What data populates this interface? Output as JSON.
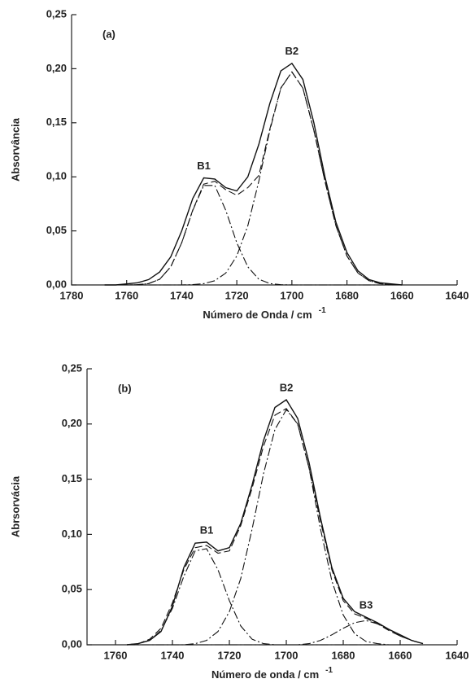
{
  "chart_data": [
    {
      "type": "line",
      "label": "(a)",
      "xlabel": "Número de Onda / cm",
      "xlabel_sup": "-1",
      "ylabel": "Absorvância",
      "xlim": [
        1780,
        1640
      ],
      "xticks": [
        1780,
        1760,
        1740,
        1720,
        1700,
        1680,
        1660,
        1640
      ],
      "ylim": [
        0,
        0.25
      ],
      "yticks": [
        {
          "value": 0,
          "label": "0,00"
        },
        {
          "value": 0.05,
          "label": "0,05"
        },
        {
          "value": 0.1,
          "label": "0,10"
        },
        {
          "value": 0.15,
          "label": "0,15"
        },
        {
          "value": 0.2,
          "label": "0,20"
        },
        {
          "value": 0.25,
          "label": "0,25"
        }
      ],
      "x": [
        1768,
        1764,
        1760,
        1756,
        1752,
        1748,
        1744,
        1740,
        1736,
        1732,
        1728,
        1724,
        1720,
        1716,
        1712,
        1708,
        1704,
        1700,
        1696,
        1692,
        1688,
        1684,
        1680,
        1676,
        1672,
        1668,
        1664,
        1660
      ],
      "series": [
        {
          "color": "#111",
          "style": "solid",
          "values": [
            0,
            0,
            0.001,
            0.002,
            0.005,
            0.012,
            0.026,
            0.05,
            0.08,
            0.099,
            0.098,
            0.09,
            0.087,
            0.1,
            0.13,
            0.168,
            0.198,
            0.205,
            0.19,
            0.15,
            0.1,
            0.058,
            0.03,
            0.013,
            0.005,
            0.002,
            0.001,
            0
          ]
        },
        {
          "color": "#111",
          "style": "dash",
          "values": [
            0,
            0,
            0,
            0.0002,
            0.0013,
            0.0053,
            0.0167,
            0.039,
            0.0693,
            0.0932,
            0.0959,
            0.088,
            0.083,
            0.09,
            0.1012,
            0.1443,
            0.1822,
            0.197,
            0.182,
            0.143,
            0.0959,
            0.0548,
            0.0267,
            0.011,
            0.0039,
            0.0012,
            0.0003,
            0
          ]
        },
        {
          "name": "B1",
          "color": "#111",
          "style": "dashdot",
          "values": [
            0,
            0,
            0,
            0.0002,
            0.0013,
            0.0053,
            0.0167,
            0.039,
            0.069,
            0.092,
            0.092,
            0.069,
            0.039,
            0.0167,
            0.0053,
            0.0013,
            0.0002,
            0,
            0,
            0,
            0,
            0,
            0,
            0,
            0,
            0,
            0,
            0
          ]
        },
        {
          "name": "B2",
          "color": "#111",
          "style": "dashdot",
          "values": [
            0,
            0,
            0,
            0,
            0,
            0,
            0,
            0,
            0.0003,
            0.0012,
            0.0039,
            0.011,
            0.0267,
            0.0548,
            0.0959,
            0.143,
            0.182,
            0.197,
            0.182,
            0.143,
            0.0959,
            0.0548,
            0.0267,
            0.011,
            0.0039,
            0.0012,
            0.0003,
            0
          ]
        }
      ]
    },
    {
      "type": "line",
      "label": "(b)",
      "xlabel": "Número de onda / cm",
      "xlabel_sup": "-1",
      "ylabel": "Abrsorvácia",
      "xlim": [
        1770,
        1640
      ],
      "xticks": [
        1760,
        1740,
        1720,
        1700,
        1680,
        1660,
        1640
      ],
      "ylim": [
        0,
        0.25
      ],
      "yticks": [
        {
          "value": 0,
          "label": "0,00"
        },
        {
          "value": 0.05,
          "label": "0,05"
        },
        {
          "value": 0.1,
          "label": "0,10"
        },
        {
          "value": 0.15,
          "label": "0,15"
        },
        {
          "value": 0.2,
          "label": "0,20"
        },
        {
          "value": 0.25,
          "label": "0,25"
        }
      ],
      "x": [
        1756,
        1752,
        1748,
        1744,
        1740,
        1736,
        1732,
        1728,
        1724,
        1720,
        1716,
        1712,
        1708,
        1704,
        1700,
        1696,
        1692,
        1688,
        1684,
        1680,
        1676,
        1672,
        1668,
        1664,
        1660,
        1656,
        1652
      ],
      "series": [
        {
          "color": "#111",
          "style": "solid",
          "values": [
            0,
            0.001,
            0.004,
            0.012,
            0.035,
            0.07,
            0.092,
            0.093,
            0.085,
            0.088,
            0.11,
            0.145,
            0.185,
            0.215,
            0.222,
            0.205,
            0.165,
            0.115,
            0.07,
            0.042,
            0.03,
            0.025,
            0.02,
            0.014,
            0.009,
            0.004,
            0.001
          ]
        },
        {
          "color": "#111",
          "style": "dash",
          "values": [
            0,
            0.001,
            0.005,
            0.015,
            0.038,
            0.068,
            0.088,
            0.09,
            0.083,
            0.085,
            0.108,
            0.142,
            0.18,
            0.208,
            0.214,
            0.2,
            0.16,
            0.112,
            0.068,
            0.04,
            0.028,
            0.024,
            0.019,
            0.013,
            0.008,
            0.004,
            0.001
          ]
        },
        {
          "name": "B1",
          "color": "#111",
          "style": "dashdot",
          "values": [
            0,
            0.001,
            0.004,
            0.013,
            0.033,
            0.062,
            0.085,
            0.087,
            0.068,
            0.04,
            0.017,
            0.005,
            0.001,
            0,
            0,
            0,
            0,
            0,
            0,
            0,
            0,
            0,
            0,
            0,
            0,
            0,
            0
          ]
        },
        {
          "name": "B2",
          "color": "#111",
          "style": "dashdot",
          "values": [
            0,
            0,
            0,
            0,
            0,
            0,
            0.001,
            0.004,
            0.012,
            0.03,
            0.06,
            0.105,
            0.155,
            0.195,
            0.213,
            0.2,
            0.16,
            0.105,
            0.058,
            0.027,
            0.01,
            0.003,
            0.001,
            0,
            0,
            0,
            0
          ]
        },
        {
          "name": "B3",
          "color": "#111",
          "style": "dashdot",
          "values": [
            0,
            0,
            0,
            0,
            0,
            0,
            0,
            0,
            0,
            0,
            0,
            0,
            0,
            0,
            0,
            0,
            0.001,
            0.004,
            0.009,
            0.015,
            0.02,
            0.022,
            0.019,
            0.014,
            0.008,
            0.004,
            0.001
          ]
        }
      ]
    }
  ]
}
